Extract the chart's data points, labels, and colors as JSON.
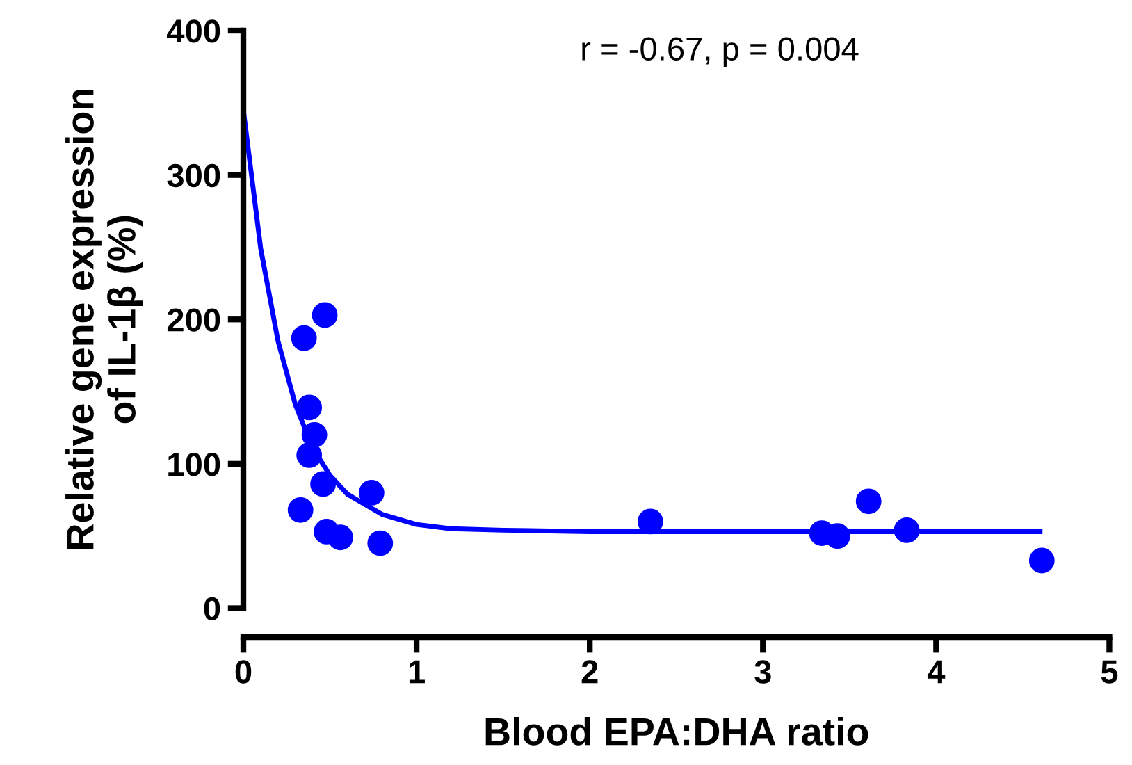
{
  "chart_data": {
    "type": "scatter",
    "xlabel": "Blood EPA:DHA ratio",
    "ylabel": "Relative gene expression\nof IL-1β (%)",
    "annotations": [
      "r = -0.67, p = 0.004"
    ],
    "xlim": [
      0,
      5
    ],
    "ylim": [
      0,
      400
    ],
    "xticks": [
      0,
      1,
      2,
      3,
      4,
      5
    ],
    "yticks": [
      0,
      100,
      200,
      300,
      400
    ],
    "grid": false,
    "legend": false,
    "series": [
      {
        "color": "#0000ff",
        "marker": "circle",
        "x": [
          0.47,
          0.35,
          0.38,
          0.41,
          0.38,
          0.46,
          0.74,
          0.33,
          0.48,
          0.56,
          0.79,
          2.35,
          3.34,
          3.43,
          3.61,
          3.83,
          4.61
        ],
        "values": [
          203,
          187,
          139,
          120,
          106,
          86,
          80,
          68,
          53,
          49,
          45,
          60,
          52,
          50,
          74,
          54,
          33
        ]
      },
      {
        "type": "line",
        "color": "#0000ff",
        "marker": "none",
        "line_style": "solid",
        "x": [
          0,
          0.1,
          0.2,
          0.3,
          0.4,
          0.5,
          0.6,
          0.8,
          1.0,
          1.2,
          1.5,
          2,
          3,
          4,
          4.6
        ],
        "values": [
          345,
          249,
          185,
          141,
          111,
          92,
          79,
          65,
          58,
          55,
          54,
          53,
          53,
          53,
          53
        ]
      }
    ]
  }
}
